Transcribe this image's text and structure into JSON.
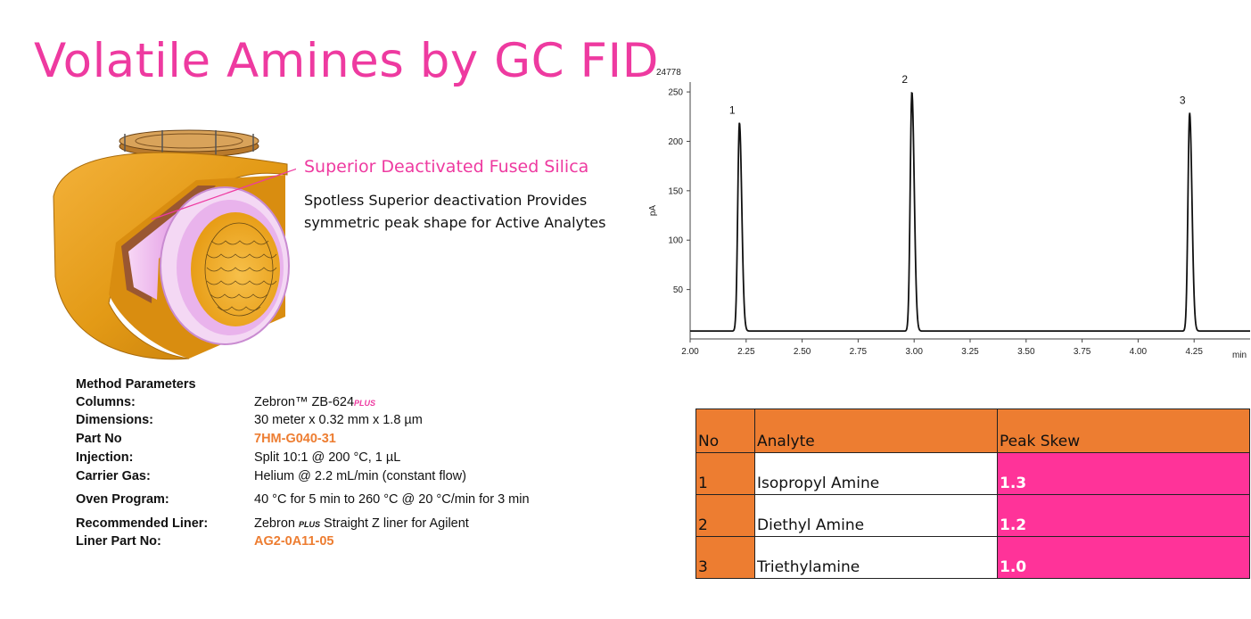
{
  "title": "Volatile Amines by GC FID",
  "feature": {
    "heading": "Superior Deactivated Fused Silica",
    "description": "Spotless Superior deactivation Provides symmetric peak shape for Active Analytes"
  },
  "method": {
    "heading": "Method Parameters",
    "columns_label": "Columns:",
    "columns_value": "Zebron™ ZB-624",
    "columns_suffix": "PLUS",
    "dimensions_label": "Dimensions:",
    "dimensions_value": "30 meter x 0.32 mm x 1.8 µm",
    "partno_label": "Part No",
    "partno_value": "7HM-G040-31",
    "injection_label": "Injection:",
    "injection_value": "Split 10:1 @ 200 °C, 1 µL",
    "carrier_label": "Carrier Gas:",
    "carrier_value": "Helium @ 2.2 mL/min (constant flow)",
    "oven_label": "Oven Program:",
    "oven_value": "40 °C for 5 min to 260 °C @ 20 °C/min  for 3 min",
    "liner_label": "Recommended Liner:",
    "liner_prefix": "Zebron ",
    "liner_plus": "PLUS",
    "liner_value": " Straight Z liner for Agilent",
    "linerpart_label": "Liner Part No:",
    "linerpart_value": "AG2-0A11-05"
  },
  "chart_data": {
    "type": "line",
    "title": "",
    "top_label": "24778",
    "xlabel": "min",
    "ylabel": "pA",
    "xlim": [
      2.0,
      4.5
    ],
    "ylim": [
      0,
      260
    ],
    "xticks": [
      "2.00",
      "2.25",
      "2.50",
      "2.75",
      "3.00",
      "3.25",
      "3.50",
      "3.75",
      "4.00",
      "4.25"
    ],
    "yticks": [
      "50",
      "100",
      "150",
      "200",
      "250"
    ],
    "baseline": 8,
    "peaks": [
      {
        "label": "1",
        "x": 2.22,
        "y": 219
      },
      {
        "label": "2",
        "x": 2.99,
        "y": 250
      },
      {
        "label": "3",
        "x": 4.23,
        "y": 229
      }
    ],
    "line_color": "#111111"
  },
  "table": {
    "headers": [
      "No",
      "Analyte",
      "Peak Skew"
    ],
    "rows": [
      {
        "no": "1",
        "analyte": "Isopropyl Amine",
        "skew": "1.3"
      },
      {
        "no": "2",
        "analyte": "Diethyl Amine",
        "skew": "1.2"
      },
      {
        "no": "3",
        "analyte": "Triethylamine",
        "skew": "1.0"
      }
    ],
    "colors": {
      "header": "#ed7d31",
      "skew": "#ff3399"
    }
  },
  "colors": {
    "accent": "#ee3aa0",
    "orange": "#ed7d31"
  }
}
